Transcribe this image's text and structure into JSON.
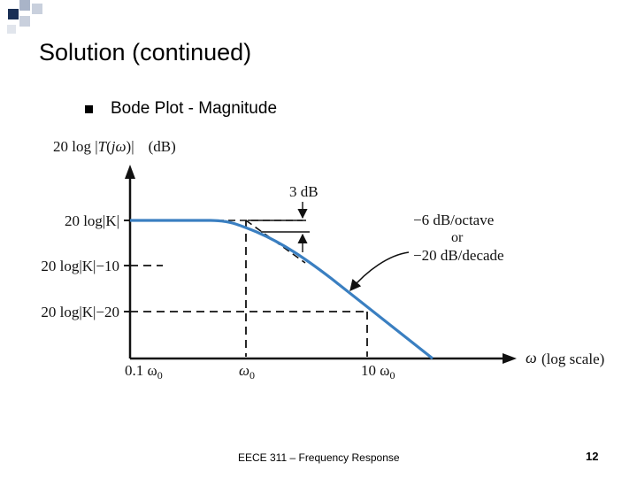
{
  "slide": {
    "title": "Solution (continued)",
    "bullet": "Bode Plot - Magnitude",
    "footer": "EECE 311 – Frequency Response",
    "page_number": "12"
  },
  "plot": {
    "y_axis_label": "20 log |T(jω)| (dB)",
    "y_axis_label_parts": {
      "a": "20 log ",
      "b": "|",
      "c": "T",
      "d": "(",
      "e": "jω",
      "f": ")",
      "g": "|",
      "h": "(dB)"
    },
    "y_ticks": [
      "20 log|K|",
      "20 log|K|−10",
      "20 log|K|−20"
    ],
    "x_ticks": [
      "0.1 ω",
      "ω",
      "10 ω"
    ],
    "x_tick_sub": "0",
    "x_axis_label": "ω",
    "x_axis_scale": "(log scale)",
    "annotation_3db": "3 dB",
    "slope_lines": [
      "−6 dB/octave",
      "or",
      "−20 dB/decade"
    ],
    "curve_color": "#3a7fc1"
  }
}
